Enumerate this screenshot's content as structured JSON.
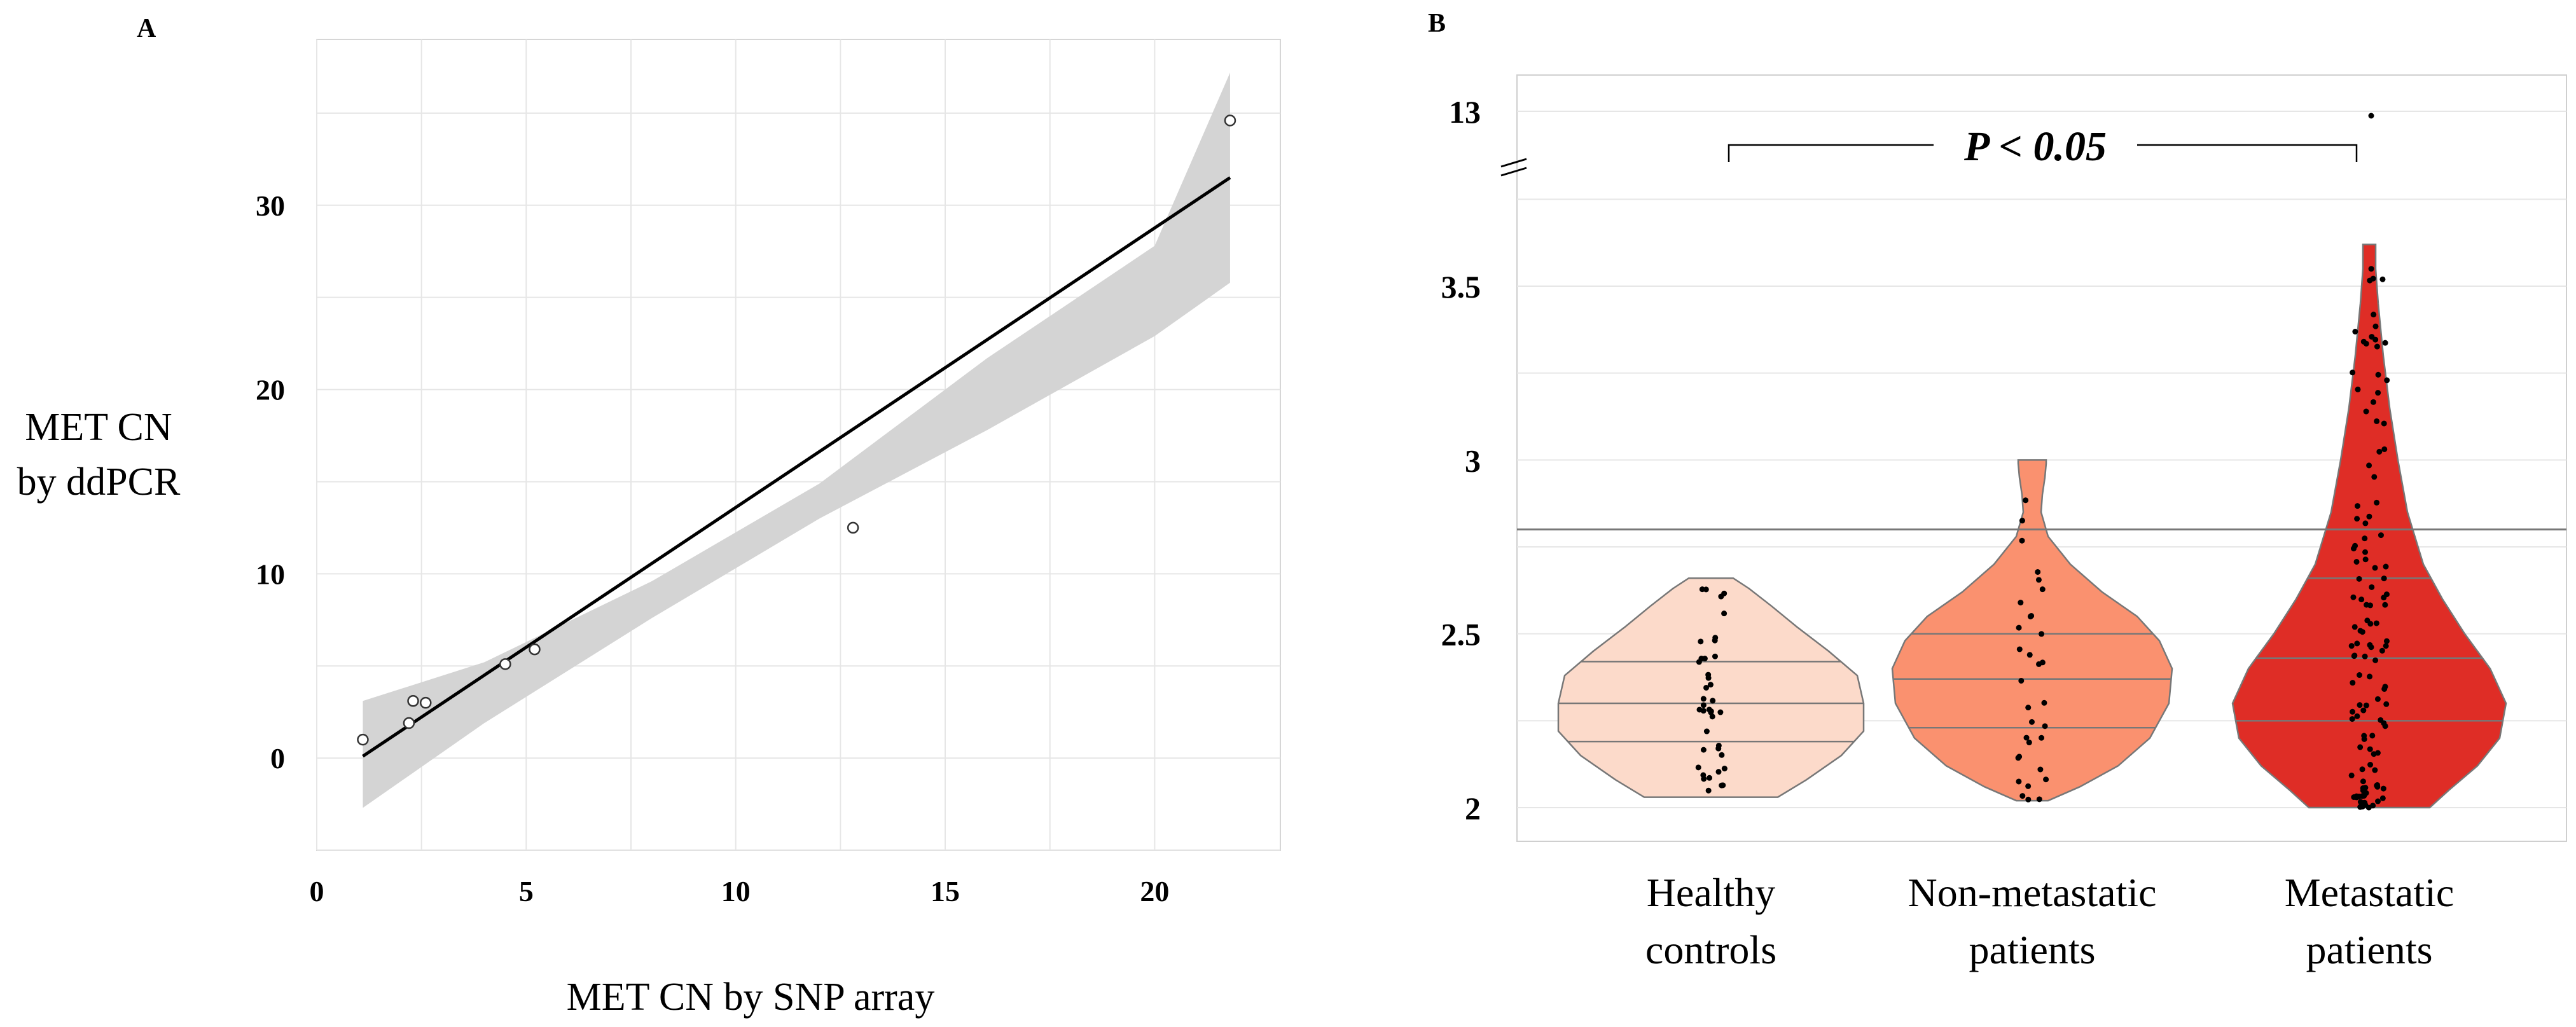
{
  "figure": {
    "left_label": "A",
    "right_label": "B"
  },
  "chart_data": [
    {
      "type": "scatter",
      "panel": "A",
      "xlabel": "MET CN by SNP array",
      "ylabel_lines": [
        "MET CN",
        "by ddPCR"
      ],
      "xlim": [
        0,
        23
      ],
      "ylim": [
        -5,
        39
      ],
      "xticks": [
        0,
        5,
        10,
        15,
        20
      ],
      "yticks": [
        0,
        10,
        20,
        30
      ],
      "grid": true,
      "points": [
        {
          "x": 1.1,
          "y": 1.0
        },
        {
          "x": 2.2,
          "y": 1.9
        },
        {
          "x": 2.3,
          "y": 3.1
        },
        {
          "x": 2.6,
          "y": 3.0
        },
        {
          "x": 4.5,
          "y": 5.1
        },
        {
          "x": 5.2,
          "y": 5.9
        },
        {
          "x": 12.8,
          "y": 12.5
        },
        {
          "x": 21.8,
          "y": 34.6
        }
      ],
      "fit_line": {
        "x": [
          1.1,
          21.8
        ],
        "y": [
          0.1,
          31.5
        ]
      },
      "confidence_band": {
        "x": [
          1.1,
          4,
          8,
          12,
          16,
          20,
          21.8
        ],
        "lower": [
          -2.7,
          1.9,
          7.6,
          13.0,
          17.8,
          22.9,
          25.8
        ],
        "upper": [
          3.1,
          5.2,
          9.6,
          14.9,
          21.7,
          27.8,
          37.2
        ]
      }
    },
    {
      "type": "violin",
      "panel": "B",
      "categories": [
        {
          "lines": [
            "Healthy",
            "controls"
          ],
          "color": "#FCDACA"
        },
        {
          "lines": [
            "Non-metastatic",
            "patients"
          ],
          "color": "#FA916F"
        },
        {
          "lines": [
            "Metastatic",
            "patients"
          ],
          "color": "#DF2D26"
        }
      ],
      "yticks": [
        "2",
        "2.5",
        "3",
        "3.5",
        "13"
      ],
      "ylim_lower_segment": [
        1.95,
        3.75
      ],
      "axis_break": "between 3.75 and 13",
      "outlier": {
        "category": 2,
        "value": 13
      },
      "reference_line": 2.8,
      "annotation": "P < 0.05",
      "comparison": [
        "Healthy controls",
        "Metastatic patients"
      ],
      "quartiles": [
        [
          2.19,
          2.3,
          2.42
        ],
        [
          2.23,
          2.37,
          2.5
        ],
        [
          2.25,
          2.43,
          2.66
        ]
      ],
      "range": [
        [
          2.03,
          2.66
        ],
        [
          2.02,
          3.0
        ],
        [
          2.0,
          3.62
        ]
      ]
    }
  ]
}
